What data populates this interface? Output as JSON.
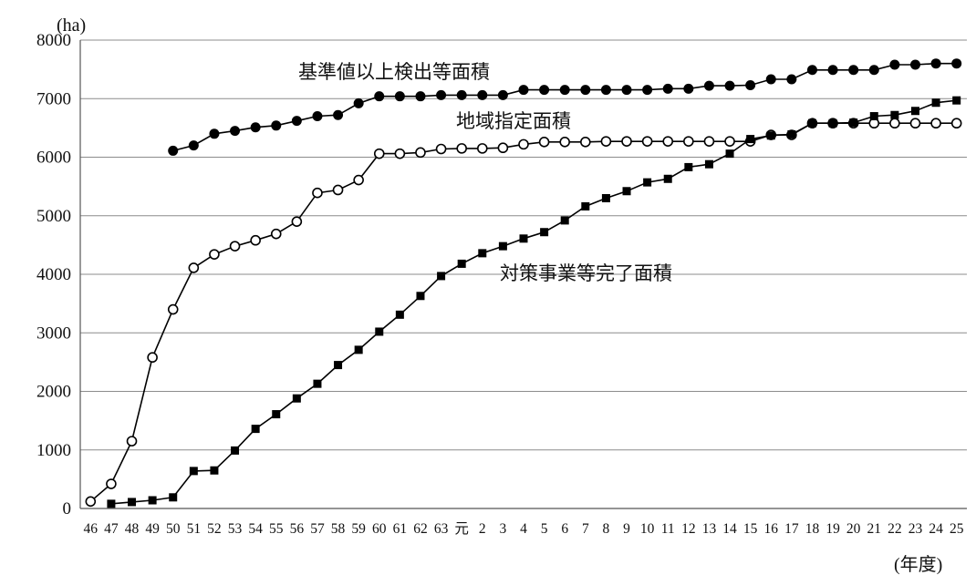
{
  "chart_data": {
    "type": "line",
    "y_unit_label": "(ha)",
    "x_unit_label": "(年度)",
    "ylim": [
      0,
      8000
    ],
    "yticks": [
      0,
      1000,
      2000,
      3000,
      4000,
      5000,
      6000,
      7000,
      8000
    ],
    "grid": "horizontal",
    "categories": [
      "46",
      "47",
      "48",
      "49",
      "50",
      "51",
      "52",
      "53",
      "54",
      "55",
      "56",
      "57",
      "58",
      "59",
      "60",
      "61",
      "62",
      "63",
      "元",
      "2",
      "3",
      "4",
      "5",
      "6",
      "7",
      "8",
      "9",
      "10",
      "11",
      "12",
      "13",
      "14",
      "15",
      "16",
      "17",
      "18",
      "19",
      "20",
      "21",
      "22",
      "23",
      "24",
      "25"
    ],
    "series": [
      {
        "name": "基準値以上検出等面積",
        "marker": "filled-circle",
        "values": [
          null,
          null,
          null,
          null,
          6110,
          6200,
          6400,
          6450,
          6510,
          6540,
          6620,
          6700,
          6720,
          6920,
          7040,
          7040,
          7040,
          7060,
          7060,
          7060,
          7060,
          7150,
          7150,
          7150,
          7150,
          7150,
          7150,
          7150,
          7170,
          7170,
          7220,
          7220,
          7230,
          7330,
          7330,
          7490,
          7490,
          7490,
          7490,
          7580,
          7580,
          7600,
          7600
        ]
      },
      {
        "name": "地域指定面積",
        "marker": "open-circle",
        "values": [
          120,
          420,
          1150,
          2580,
          3400,
          4110,
          4340,
          4480,
          4580,
          4690,
          4900,
          5390,
          5440,
          5610,
          6060,
          6060,
          6080,
          6140,
          6150,
          6150,
          6160,
          6220,
          6260,
          6260,
          6260,
          6270,
          6270,
          6270,
          6270,
          6270,
          6270,
          6270,
          6270,
          6380,
          6380,
          6580,
          6580,
          6580,
          6580,
          6580,
          6580,
          6580,
          6580
        ]
      },
      {
        "name": "対策事業等完了面積",
        "marker": "filled-square",
        "values": [
          null,
          80,
          110,
          140,
          190,
          640,
          650,
          990,
          1360,
          1610,
          1880,
          2130,
          2450,
          2710,
          3020,
          3310,
          3630,
          3970,
          4180,
          4360,
          4480,
          4610,
          4720,
          4920,
          5160,
          5300,
          5420,
          5570,
          5630,
          5830,
          5880,
          6060,
          6310,
          6370,
          6390,
          6580,
          6580,
          6590,
          6700,
          6720,
          6790,
          6930,
          6970
        ]
      }
    ]
  }
}
